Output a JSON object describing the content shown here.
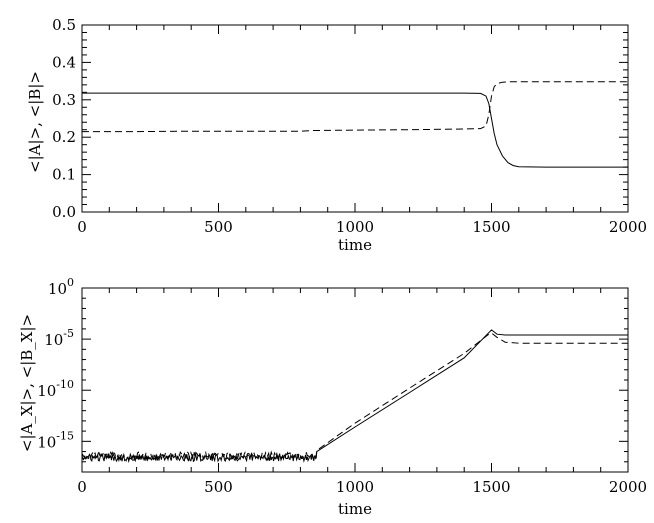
{
  "chart_data": [
    {
      "type": "line",
      "xlabel": "time",
      "ylabel": "<|A|>, <|B|>",
      "xlim": [
        0,
        2000
      ],
      "ylim": [
        0.0,
        0.5
      ],
      "x_ticks": [
        "0",
        "500",
        "1000",
        "1500",
        "2000"
      ],
      "y_ticks": [
        "0.0",
        "0.1",
        "0.2",
        "0.3",
        "0.4",
        "0.5"
      ],
      "series": [
        {
          "style": "solid",
          "x": [
            0,
            200,
            400,
            600,
            800,
            1000,
            1200,
            1400,
            1460,
            1480,
            1490,
            1500,
            1510,
            1520,
            1540,
            1560,
            1580,
            1600,
            1700,
            1800,
            1900,
            2000
          ],
          "y": [
            0.318,
            0.318,
            0.318,
            0.318,
            0.318,
            0.318,
            0.318,
            0.318,
            0.317,
            0.31,
            0.29,
            0.25,
            0.21,
            0.18,
            0.15,
            0.132,
            0.124,
            0.121,
            0.12,
            0.12,
            0.12,
            0.12
          ]
        },
        {
          "style": "dashed",
          "x": [
            0,
            200,
            400,
            600,
            800,
            850,
            1000,
            1200,
            1400,
            1460,
            1480,
            1490,
            1500,
            1510,
            1520,
            1540,
            1560,
            1600,
            1700,
            1800,
            1900,
            2000
          ],
          "y": [
            0.215,
            0.215,
            0.216,
            0.216,
            0.216,
            0.218,
            0.219,
            0.22,
            0.222,
            0.223,
            0.23,
            0.26,
            0.31,
            0.335,
            0.343,
            0.347,
            0.348,
            0.348,
            0.348,
            0.348,
            0.348,
            0.348
          ]
        }
      ]
    },
    {
      "type": "line",
      "xlabel": "time",
      "ylabel": "<|A_X|>, <|B_X|>",
      "xlim": [
        0,
        2000
      ],
      "ylim_log10": [
        -18,
        0
      ],
      "log_y": true,
      "x_ticks": [
        "0",
        "500",
        "1000",
        "1500",
        "2000"
      ],
      "y_ticks": [
        {
          "base": "10",
          "exp": "0",
          "value": 1
        },
        {
          "base": "10",
          "exp": "-5",
          "value": 1e-05
        },
        {
          "base": "10",
          "exp": "-10",
          "value": 1e-10
        },
        {
          "base": "10",
          "exp": "-15",
          "value": 1e-15
        }
      ],
      "series": [
        {
          "style": "solid",
          "noisy_baseline": {
            "x_from": 0,
            "x_to": 860,
            "level": 2.5e-17
          },
          "x": [
            860,
            1000,
            1200,
            1400,
            1500,
            1520,
            1550,
            1600,
            1800,
            2000
          ],
          "y": [
            1e-16,
            2.5e-14,
            6e-11,
            1.5e-07,
            8e-05,
            3e-05,
            2.5e-05,
            2.5e-05,
            2.5e-05,
            2.5e-05
          ]
        },
        {
          "style": "dashed",
          "noisy_baseline": {
            "x_from": 0,
            "x_to": 860,
            "level": 4e-17
          },
          "x": [
            860,
            1000,
            1200,
            1400,
            1490,
            1500,
            1520,
            1550,
            1600,
            1800,
            2000
          ],
          "y": [
            1.3e-16,
            6e-14,
            1.6e-10,
            4e-07,
            3e-05,
            4e-05,
            1.5e-05,
            5e-06,
            4e-06,
            4e-06,
            4e-06
          ]
        }
      ]
    }
  ]
}
